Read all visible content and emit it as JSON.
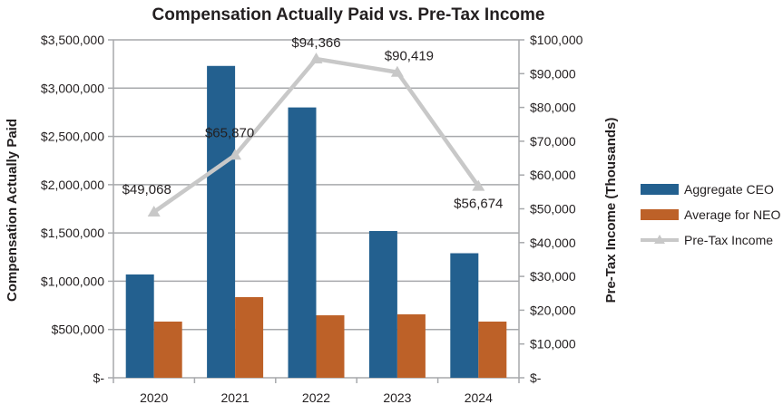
{
  "chart_data": {
    "type": "bar",
    "title": "Compensation Actually Paid vs. Pre-Tax Income",
    "categories": [
      "2020",
      "2021",
      "2022",
      "2023",
      "2024"
    ],
    "ylabel": "Compensation Actually Paid",
    "y2label": "Pre-Tax Income (Thousands)",
    "ylim": [
      0,
      3500000
    ],
    "y2lim": [
      0,
      100000
    ],
    "yticks": [
      "$-",
      "$500,000",
      "$1,000,000",
      "$1,500,000",
      "$2,000,000",
      "$2,500,000",
      "$3,000,000",
      "$3,500,000"
    ],
    "y2ticks": [
      "$-",
      "$10,000",
      "$20,000",
      "$30,000",
      "$40,000",
      "$50,000",
      "$60,000",
      "$70,000",
      "$80,000",
      "$90,000",
      "$100,000"
    ],
    "grid": true,
    "legend_position": "right",
    "series": [
      {
        "name": "Aggregate CEO",
        "type": "bar",
        "axis": "left",
        "color": "#23608f",
        "values": [
          1070000,
          3230000,
          2800000,
          1520000,
          1290000
        ]
      },
      {
        "name": "Average for NEO",
        "type": "bar",
        "axis": "left",
        "color": "#bd6128",
        "values": [
          582000,
          835000,
          647000,
          657000,
          582000
        ]
      },
      {
        "name": "Pre-Tax Income",
        "type": "line",
        "axis": "right",
        "color": "#c8c8c8",
        "marker": "triangle",
        "values": [
          49068,
          65870,
          94366,
          90419,
          56674
        ],
        "labels": [
          "$49,068",
          "$65,870",
          "$94,366",
          "$90,419",
          "$56,674"
        ]
      }
    ]
  }
}
